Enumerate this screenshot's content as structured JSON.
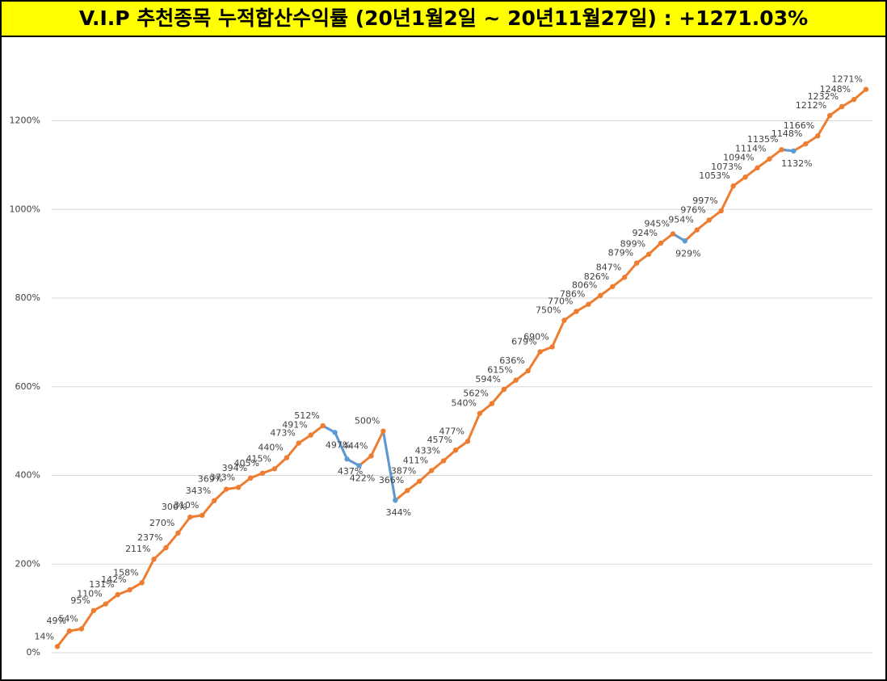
{
  "chart_data": {
    "type": "line",
    "title": "V.I.P 추천종목 누적합산수익률 (20년1월2일 ~ 20년11월27일) : +1271.03%",
    "values": [
      14,
      49,
      54,
      95,
      110,
      131,
      142,
      158,
      211,
      237,
      270,
      306,
      310,
      343,
      369,
      373,
      394,
      405,
      415,
      440,
      473,
      491,
      512,
      497,
      437,
      422,
      444,
      500,
      344,
      366,
      387,
      411,
      433,
      457,
      477,
      540,
      562,
      594,
      615,
      636,
      679,
      690,
      750,
      770,
      786,
      806,
      826,
      847,
      879,
      899,
      924,
      945,
      929,
      954,
      976,
      997,
      1053,
      1073,
      1094,
      1114,
      1135,
      1132,
      1148,
      1166,
      1212,
      1232,
      1248,
      1271
    ],
    "value_labels": [
      "14%",
      "49%",
      "54%",
      "95%",
      "110%",
      "131%",
      "142%",
      "158%",
      "211%",
      "237%",
      "270%",
      "306%",
      "310%",
      "343%",
      "369%",
      "373%",
      "394%",
      "405%",
      "415%",
      "440%",
      "473%",
      "491%",
      "512%",
      "497%",
      "437%",
      "422%",
      "444%",
      "500%",
      "344%",
      "366%",
      "387%",
      "411%",
      "433%",
      "457%",
      "477%",
      "540%",
      "562%",
      "594%",
      "615%",
      "636%",
      "679%",
      "690%",
      "750%",
      "770%",
      "786%",
      "806%",
      "826%",
      "847%",
      "879%",
      "899%",
      "924%",
      "945%",
      "929%",
      "954%",
      "976%",
      "997%",
      "1053%",
      "1073%",
      "1094%",
      "1114%",
      "1135%",
      "1132%",
      "1148%",
      "1166%",
      "1212%",
      "1232%",
      "1248%",
      "1271%"
    ],
    "color": "#ed7d31",
    "decline_color": "#5b9bd5",
    "ylim": [
      0,
      1345
    ],
    "yticks": [
      {
        "value": 0,
        "label": "0%"
      },
      {
        "value": 200,
        "label": "200%"
      },
      {
        "value": 400,
        "label": "400%"
      },
      {
        "value": 600,
        "label": "600%"
      },
      {
        "value": 800,
        "label": "800%"
      },
      {
        "value": 1000,
        "label": "1000%"
      },
      {
        "value": 1200,
        "label": "1200%"
      }
    ],
    "grid": true
  }
}
